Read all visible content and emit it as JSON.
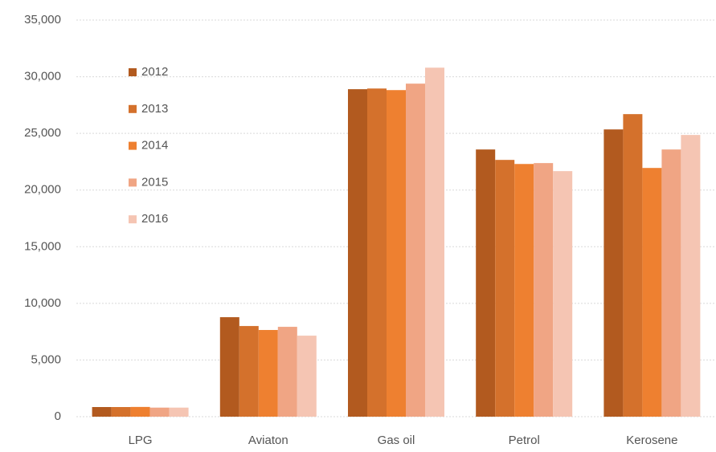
{
  "chart_data": {
    "type": "bar",
    "categories": [
      "LPG",
      "Aviaton",
      "Gas oil",
      "Petrol",
      "Kerosene"
    ],
    "series": [
      {
        "name": "2012",
        "color": "#b25a1f",
        "values": [
          850,
          8780,
          28900,
          23580,
          25350
        ]
      },
      {
        "name": "2013",
        "color": "#d4712c",
        "values": [
          850,
          8000,
          28960,
          22660,
          26700
        ]
      },
      {
        "name": "2014",
        "color": "#ee8030",
        "values": [
          860,
          7650,
          28820,
          22300,
          21950
        ]
      },
      {
        "name": "2015",
        "color": "#f0a584",
        "values": [
          800,
          7930,
          29390,
          22380,
          23580
        ]
      },
      {
        "name": "2016",
        "color": "#f5c5b3",
        "values": [
          800,
          7150,
          30800,
          21670,
          24860
        ]
      }
    ],
    "ylim": [
      0,
      35000
    ],
    "yticks": [
      0,
      {
        "value": 5000,
        "label": "5,000"
      },
      {
        "value": 10000,
        "label": "10,000"
      },
      {
        "value": 15000,
        "label": "15,000"
      },
      {
        "value": 20000,
        "label": "20,000"
      },
      {
        "value": 25000,
        "label": "25,000"
      },
      {
        "value": 30000,
        "label": "30,000"
      },
      {
        "value": 35000,
        "label": "35,000"
      }
    ],
    "grid": true,
    "legend": "upper left"
  }
}
